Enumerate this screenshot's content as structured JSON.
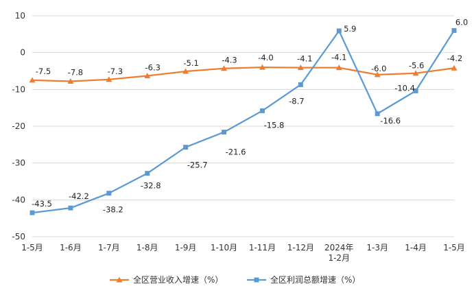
{
  "chart_data": {
    "type": "line",
    "title": "",
    "xlabel": "",
    "ylabel": "",
    "ylim": [
      -50,
      10
    ],
    "yticks": [
      10,
      0,
      -10,
      -20,
      -30,
      -40,
      -50
    ],
    "grid": true,
    "legend_position": "bottom",
    "categories": [
      "1-5月",
      "1-6月",
      "1-7月",
      "1-8月",
      "1-9月",
      "1-10月",
      "1-11月",
      "1-12月",
      "2024年\n1-2月",
      "1-3月",
      "1-4月",
      "1-5月"
    ],
    "series": [
      {
        "name": "全区营业收入增速（%）",
        "color": "#ED7D31",
        "marker": "triangle",
        "values": [
          -7.5,
          -7.8,
          -7.3,
          -6.3,
          -5.1,
          -4.3,
          -4.0,
          -4.1,
          -4.1,
          -6.0,
          -5.6,
          -4.2
        ],
        "labels": [
          "-7.5",
          "-7.8",
          "-7.3",
          "-6.3",
          "-5.1",
          "-4.3",
          "-4.0",
          "-4.1",
          "-4.1",
          "-6.0",
          "-5.6",
          "-4.2"
        ]
      },
      {
        "name": "全区利润总额增速（%）",
        "color": "#5B9BD5",
        "marker": "square",
        "values": [
          -43.5,
          -42.2,
          -38.2,
          -32.8,
          -25.7,
          -21.6,
          -15.8,
          -8.7,
          5.9,
          -16.6,
          -10.4,
          6.0
        ],
        "labels": [
          "-43.5",
          "-42.2",
          "-38.2",
          "-32.8",
          "-25.7",
          "-21.6",
          "-15.8",
          "-8.7",
          "5.9",
          "-16.6",
          "-10.4",
          "6.0"
        ]
      }
    ]
  }
}
